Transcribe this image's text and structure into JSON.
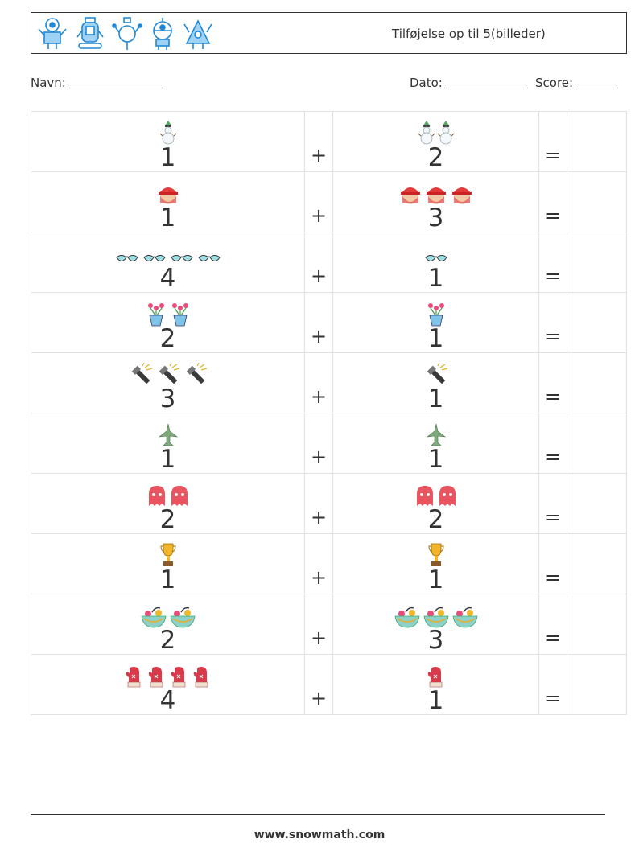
{
  "header": {
    "title": "Tilføjelse op til 5(billeder)",
    "robot_icons": [
      "robot-1-icon",
      "robot-2-icon",
      "robot-3-icon",
      "robot-4-icon",
      "robot-5-icon"
    ],
    "accent_color": "#1e88d8"
  },
  "fields": {
    "name_label": "Navn:",
    "date_label": "Dato:",
    "score_label": "Score:"
  },
  "problems": [
    {
      "a": "1",
      "a_icon": "snowman",
      "b": "2",
      "b_icon": "snowman",
      "plus": "+",
      "equals": "="
    },
    {
      "a": "1",
      "a_icon": "firefighter",
      "b": "3",
      "b_icon": "firefighter",
      "plus": "+",
      "equals": "="
    },
    {
      "a": "4",
      "a_icon": "sunglasses",
      "b": "1",
      "b_icon": "sunglasses",
      "plus": "+",
      "equals": "="
    },
    {
      "a": "2",
      "a_icon": "flower-pot",
      "b": "1",
      "b_icon": "flower-pot",
      "plus": "+",
      "equals": "="
    },
    {
      "a": "3",
      "a_icon": "flashlight",
      "b": "1",
      "b_icon": "flashlight",
      "plus": "+",
      "equals": "="
    },
    {
      "a": "1",
      "a_icon": "jet-plane",
      "b": "1",
      "b_icon": "jet-plane",
      "plus": "+",
      "equals": "="
    },
    {
      "a": "2",
      "a_icon": "ghost",
      "b": "2",
      "b_icon": "ghost",
      "plus": "+",
      "equals": "="
    },
    {
      "a": "1",
      "a_icon": "trophy",
      "b": "1",
      "b_icon": "trophy",
      "plus": "+",
      "equals": "="
    },
    {
      "a": "2",
      "a_icon": "fruit-bowl",
      "b": "3",
      "b_icon": "fruit-bowl",
      "plus": "+",
      "equals": "="
    },
    {
      "a": "4",
      "a_icon": "mitten",
      "b": "1",
      "b_icon": "mitten",
      "plus": "+",
      "equals": "="
    }
  ],
  "footer": {
    "url": "www.snowmath.com"
  }
}
